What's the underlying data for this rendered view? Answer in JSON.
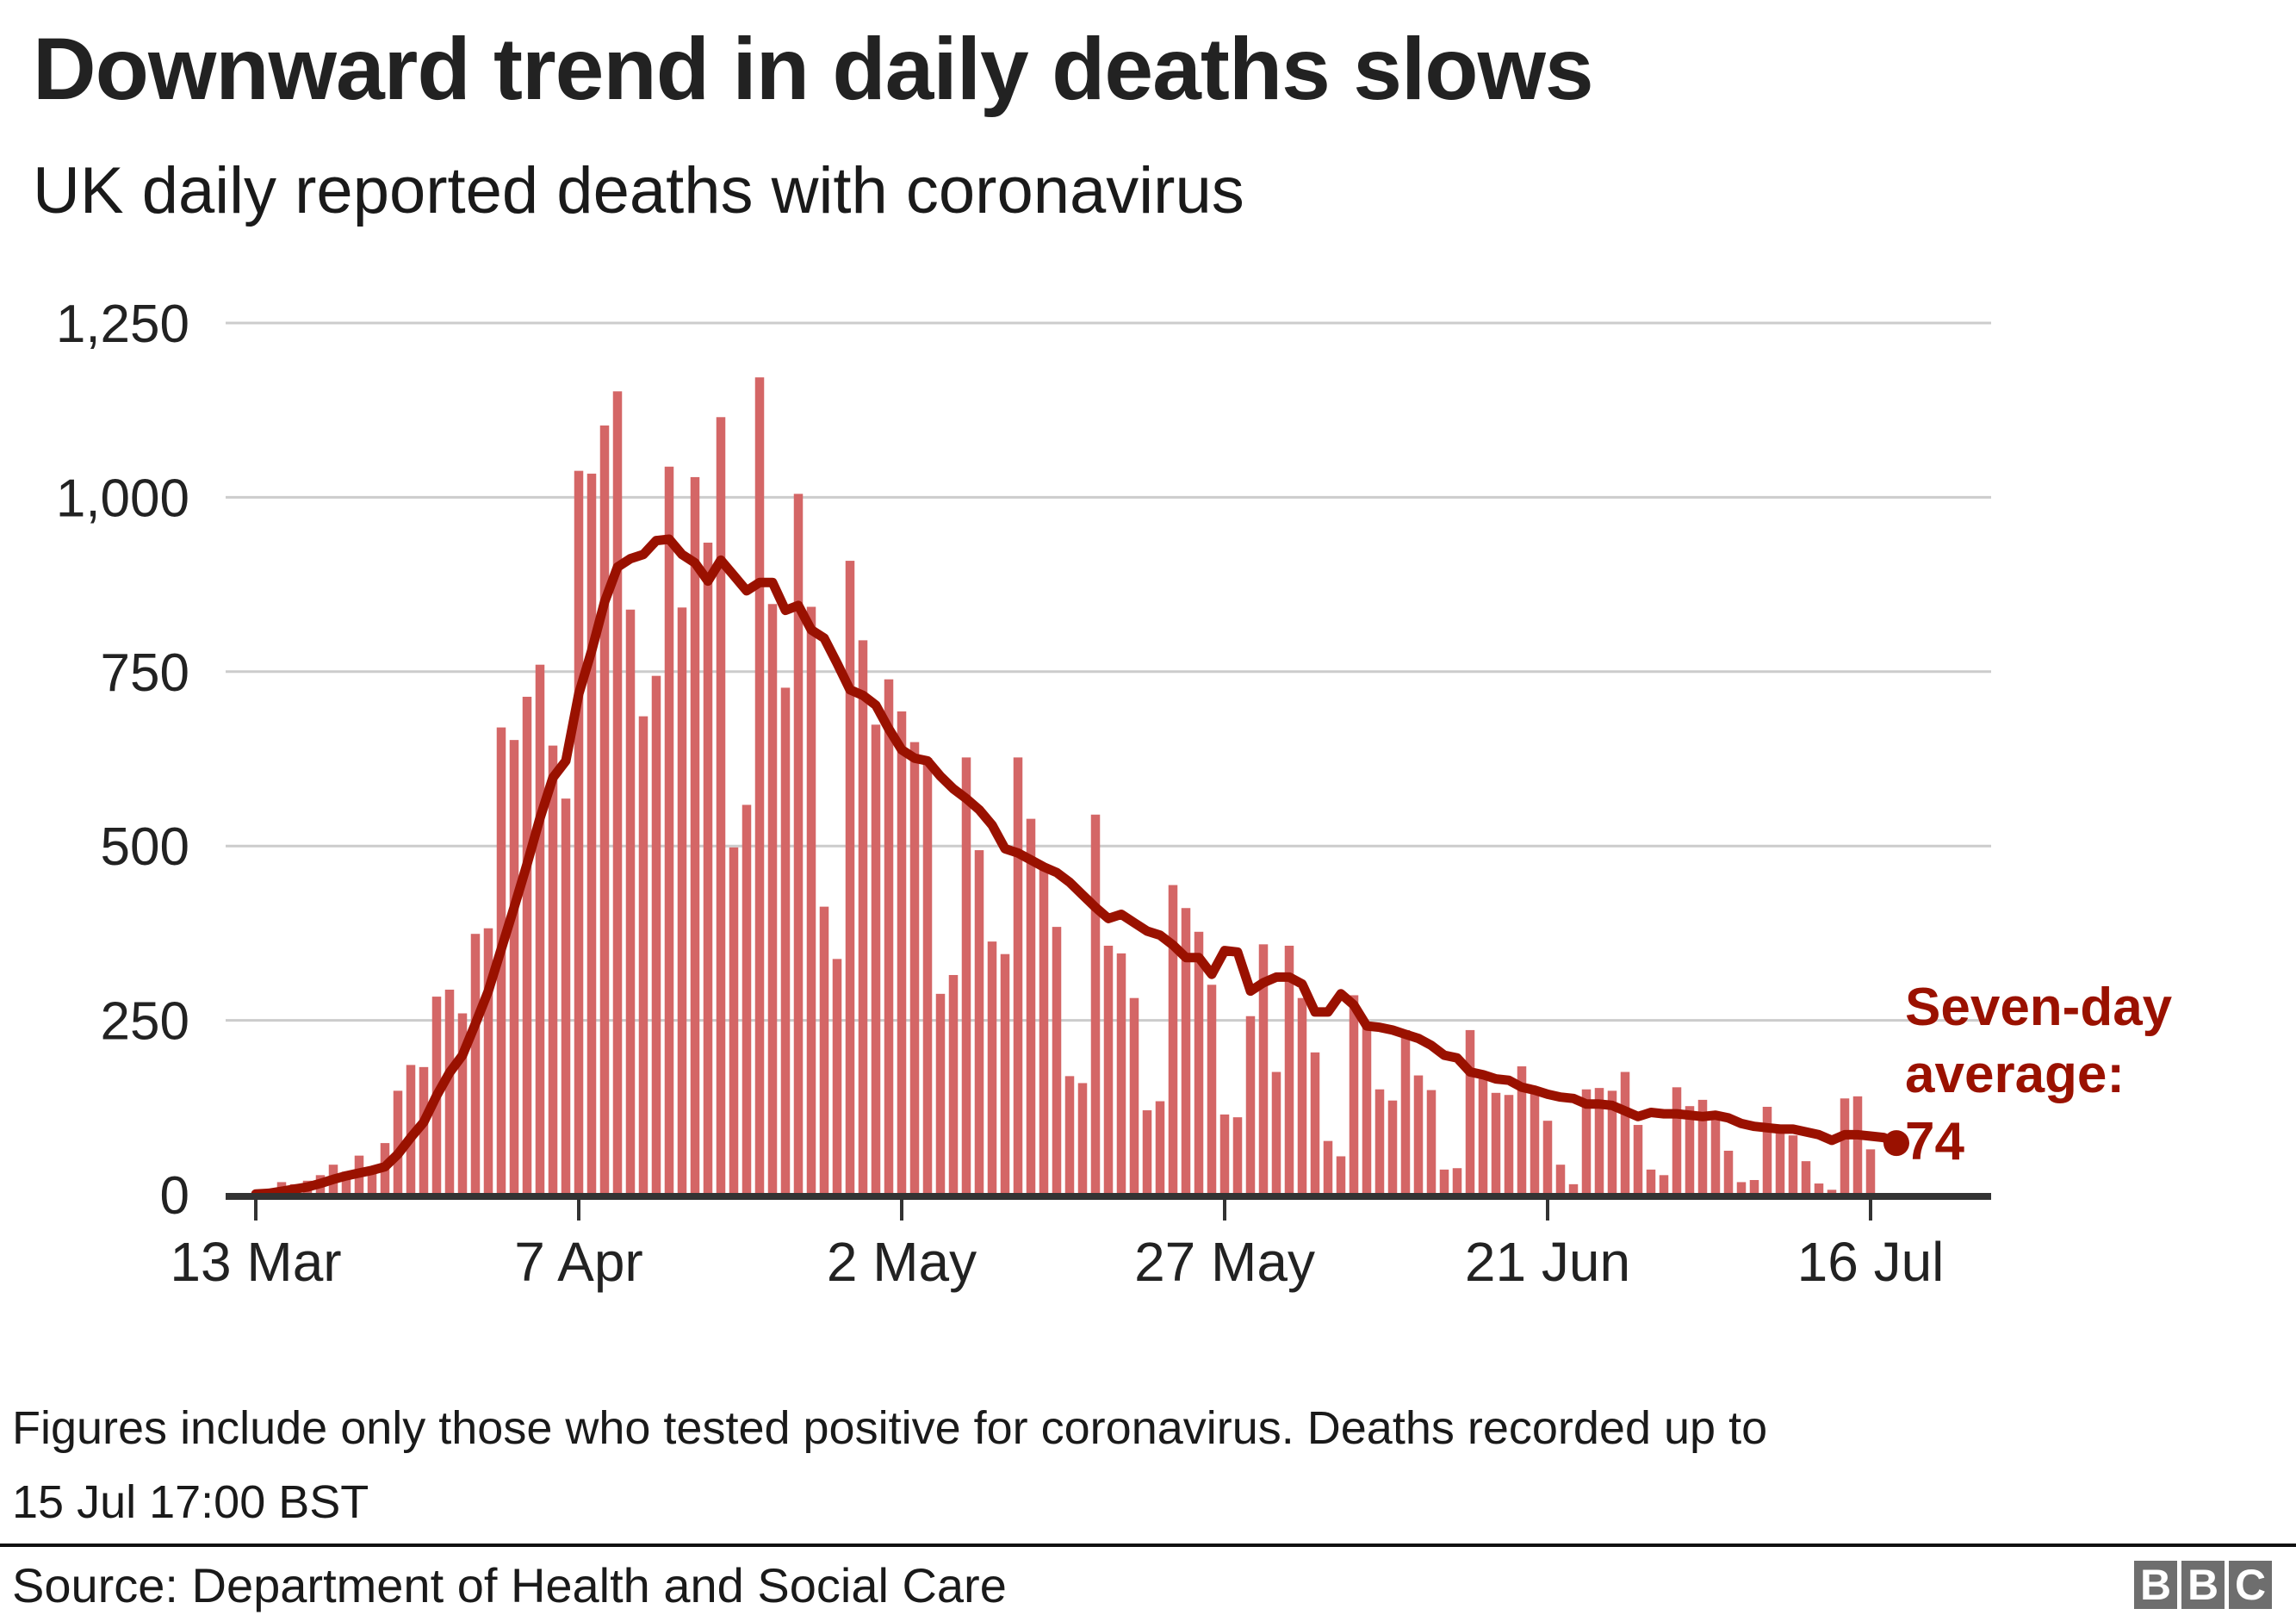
{
  "title": "Downward trend in daily deaths slows",
  "subtitle": "UK daily reported deaths with coronavirus",
  "colors": {
    "bar": "#d46666",
    "line": "#9a1100",
    "grid": "#cccccc",
    "axis": "#333333",
    "annotation": "#9a1100"
  },
  "chart_data": {
    "type": "bar",
    "title": "Downward trend in daily deaths slows",
    "subtitle": "UK daily reported deaths with coronavirus",
    "xlabel": "",
    "ylabel": "",
    "ylim": [
      0,
      1250
    ],
    "yticks": [
      0,
      250,
      500,
      750,
      1000,
      1250
    ],
    "ytick_labels": [
      "0",
      "250",
      "500",
      "750",
      "1,000",
      "1,250"
    ],
    "xtick_labels": [
      "13 Mar",
      "7 Apr",
      "2 May",
      "27 May",
      "21 Jun",
      "16 Jul"
    ],
    "xtick_day_index": [
      0,
      25,
      50,
      75,
      100,
      125
    ],
    "grid": true,
    "start_date": "13 Mar",
    "series": [
      {
        "name": "Daily reported deaths",
        "type": "bar",
        "values": [
          1,
          2,
          18,
          15,
          20,
          28,
          43,
          33,
          56,
          35,
          74,
          149,
          186,
          183,
          284,
          294,
          260,
          374,
          382,
          670,
          652,
          714,
          760,
          644,
          568,
          1038,
          1034,
          1103,
          1152,
          839,
          686,
          744,
          1044,
          842,
          1029,
          935,
          1115,
          498,
          559,
          1172,
          847,
          727,
          1005,
          843,
          413,
          338,
          909,
          795,
          674,
          739,
          693,
          649,
          626,
          288,
          315,
          627,
          494,
          363,
          345,
          627,
          539,
          469,
          384,
          170,
          160,
          545,
          357,
          346,
          282,
          121,
          134,
          444,
          411,
          377,
          301,
          115,
          111,
          256,
          359,
          176,
          357,
          282,
          204,
          77,
          55,
          286,
          245,
          151,
          135,
          236,
          171,
          150,
          36,
          38,
          236,
          176,
          146,
          143,
          184,
          155,
          106,
          43,
          15,
          151,
          153,
          149,
          176,
          100,
          36,
          28,
          154,
          127,
          136,
          112,
          63,
          18,
          21,
          126,
          89,
          85,
          48,
          16,
          7,
          138,
          141,
          65
        ]
      },
      {
        "name": "Seven-day average",
        "type": "line",
        "values": [
          1,
          2,
          5,
          8,
          11,
          16,
          22,
          27,
          31,
          35,
          40,
          58,
          82,
          104,
          142,
          175,
          200,
          245,
          292,
          352,
          412,
          474,
          540,
          598,
          622,
          718,
          780,
          850,
          900,
          912,
          918,
          938,
          940,
          918,
          906,
          880,
          910,
          888,
          866,
          878,
          878,
          838,
          845,
          810,
          798,
          762,
          724,
          716,
          702,
          668,
          638,
          626,
          622,
          600,
          582,
          568,
          552,
          530,
          496,
          490,
          480,
          470,
          462,
          448,
          430,
          412,
          396,
          402,
          390,
          378,
          372,
          358,
          340,
          340,
          316,
          350,
          348,
          292,
          304,
          312,
          312,
          302,
          262,
          262,
          288,
          272,
          242,
          240,
          236,
          230,
          224,
          214,
          200,
          196,
          176,
          172,
          166,
          164,
          154,
          150,
          144,
          140,
          138,
          130,
          130,
          128,
          120,
          112,
          118,
          116,
          116,
          114,
          112,
          114,
          110,
          102,
          98,
          96,
          94,
          94,
          90,
          86,
          78,
          86,
          86,
          84,
          82,
          74
        ]
      }
    ],
    "annotations": [
      {
        "text": [
          "Seven-day",
          "average:",
          "74"
        ],
        "target": "last point of seven-day average"
      }
    ]
  },
  "annotation": {
    "line1": "Seven-day",
    "line2": "average:",
    "line3": "74"
  },
  "footer": {
    "note_line1": "Figures include only those who tested positive for coronavirus. Deaths recorded up to",
    "note_line2": "15 Jul 17:00 BST",
    "source": "Source: Department of Health and Social Care",
    "logo": [
      "B",
      "B",
      "C"
    ]
  }
}
